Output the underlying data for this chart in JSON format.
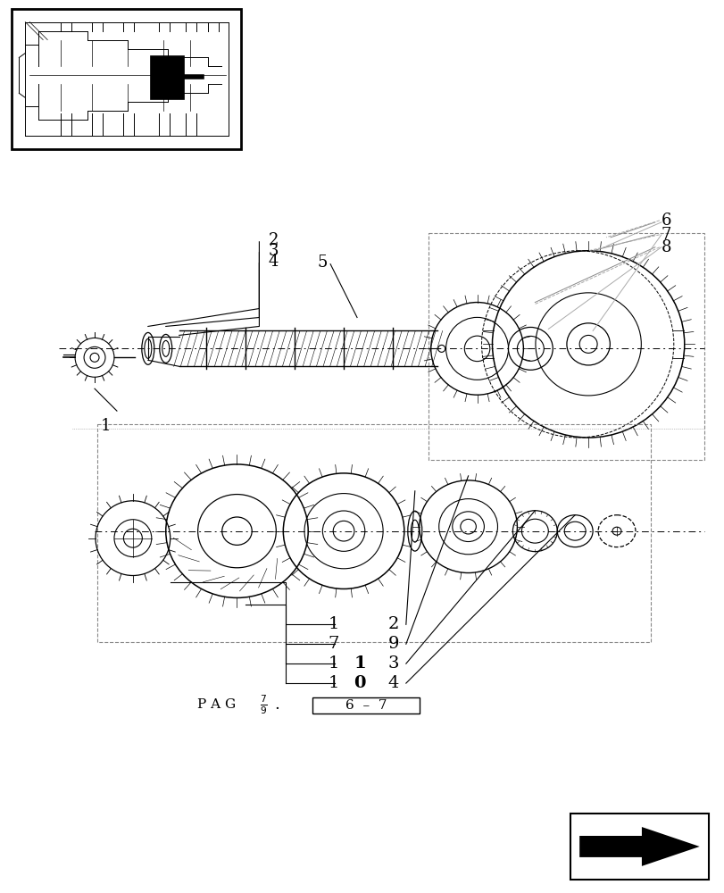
{
  "bg_color": "#ffffff",
  "line_color": "#000000",
  "fig_width": 8.12,
  "fig_height": 10.0,
  "dpi": 100
}
